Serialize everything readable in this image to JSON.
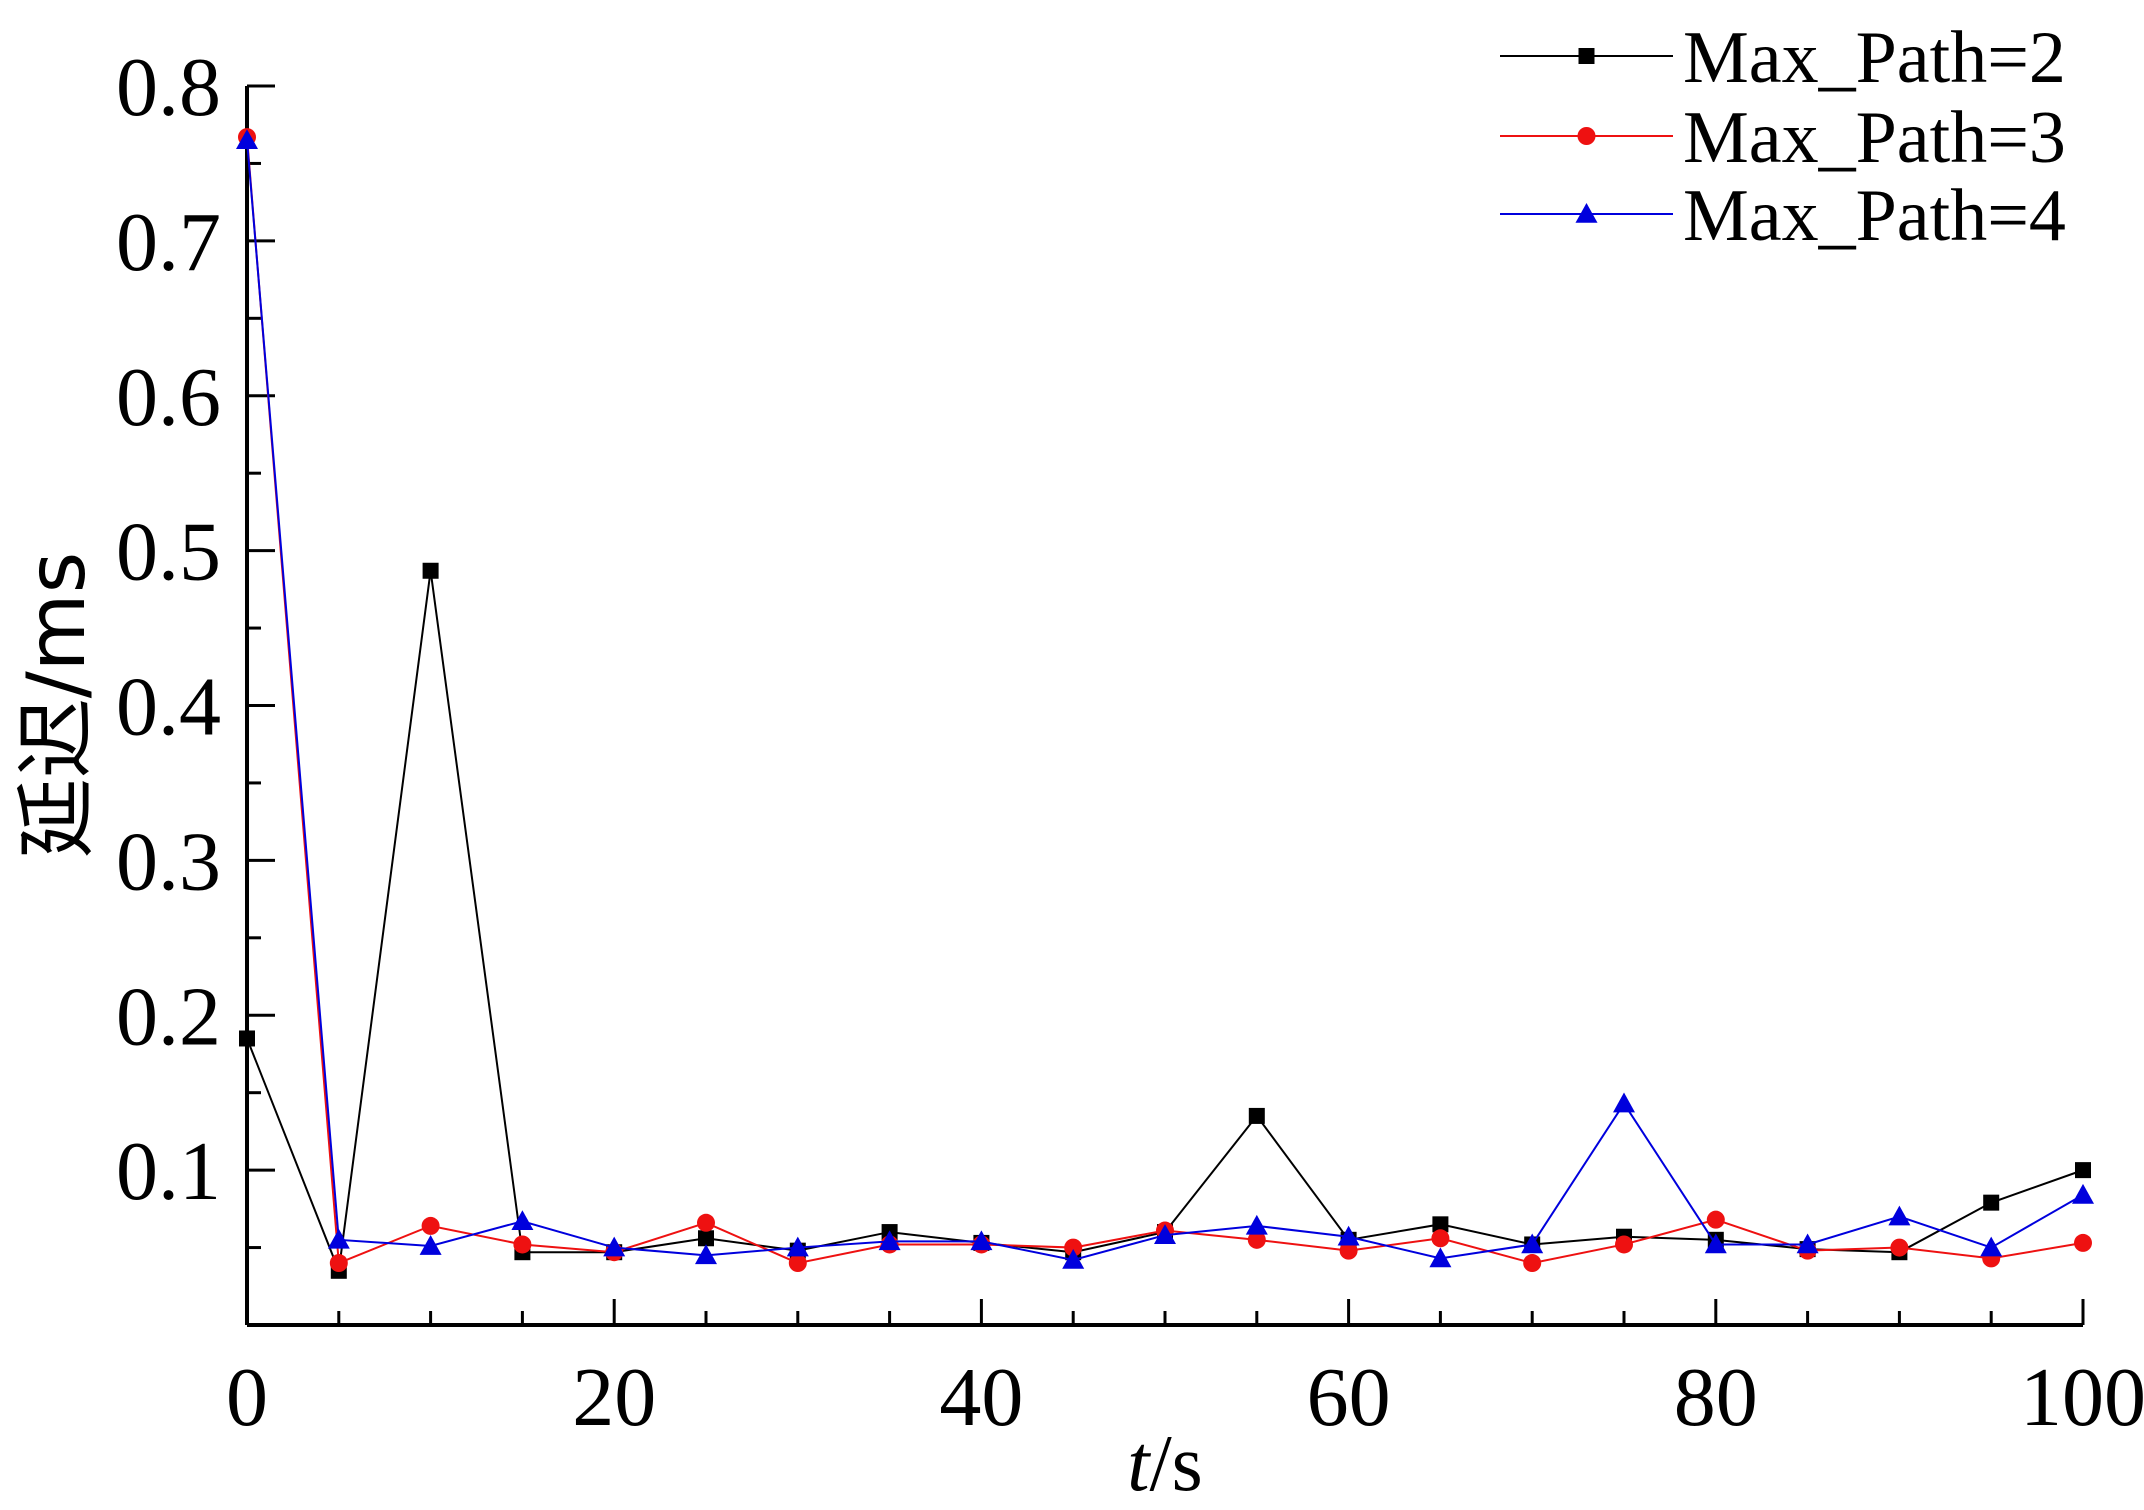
{
  "chart_data": {
    "type": "line",
    "title": "",
    "xlabel": {
      "italic": "t",
      "rest": "/s"
    },
    "ylabel": "延迟/ms",
    "xlim": [
      0,
      100
    ],
    "ylim": [
      0,
      0.8
    ],
    "x_ticks": [
      0,
      20,
      40,
      60,
      80,
      100
    ],
    "x_tick_labels": [
      "0",
      "20",
      "40",
      "60",
      "80",
      "100"
    ],
    "x_minor_step": 5,
    "y_ticks": [
      0.1,
      0.2,
      0.3,
      0.4,
      0.5,
      0.6,
      0.7,
      0.8
    ],
    "y_tick_labels": [
      "0.1",
      "0.2",
      "0.3",
      "0.4",
      "0.5",
      "0.6",
      "0.7",
      "0.8"
    ],
    "y_minor_step": 0.05,
    "grid": false,
    "legend_position": "top-right",
    "x": [
      0,
      5,
      10,
      15,
      20,
      25,
      30,
      35,
      40,
      45,
      50,
      55,
      60,
      65,
      70,
      75,
      80,
      85,
      90,
      95,
      100
    ],
    "series": [
      {
        "name": "Max_Path=2",
        "color": "#000000",
        "marker": "square",
        "values": [
          0.185,
          0.035,
          0.487,
          0.047,
          0.047,
          0.056,
          0.048,
          0.06,
          0.053,
          0.047,
          0.06,
          0.135,
          0.055,
          0.065,
          0.052,
          0.057,
          0.055,
          0.049,
          0.047,
          0.079,
          0.1
        ]
      },
      {
        "name": "Max_Path=3",
        "color": "#ee1111",
        "marker": "circle",
        "values": [
          0.767,
          0.04,
          0.064,
          0.052,
          0.047,
          0.066,
          0.04,
          0.052,
          0.052,
          0.05,
          0.061,
          0.055,
          0.048,
          0.056,
          0.04,
          0.052,
          0.068,
          0.048,
          0.05,
          0.043,
          0.053
        ]
      },
      {
        "name": "Max_Path=4",
        "color": "#0000dd",
        "marker": "triangle",
        "values": [
          0.765,
          0.055,
          0.051,
          0.067,
          0.05,
          0.045,
          0.05,
          0.054,
          0.054,
          0.042,
          0.058,
          0.064,
          0.057,
          0.043,
          0.052,
          0.143,
          0.052,
          0.052,
          0.07,
          0.05,
          0.084
        ]
      }
    ]
  }
}
